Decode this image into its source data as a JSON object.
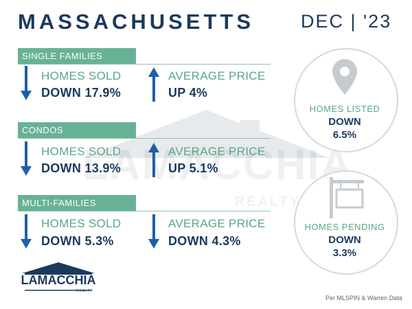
{
  "header": {
    "title": "MASSACHUSETTS",
    "date": "DEC | '23"
  },
  "watermark": {
    "text": "LAMACCHIA",
    "sub": "REALTY"
  },
  "sections": [
    {
      "band": "SINGLE FAMILIES",
      "homes_sold": {
        "label": "HOMES SOLD",
        "value": "DOWN 17.9%",
        "direction": "down"
      },
      "avg_price": {
        "label": "AVERAGE PRICE",
        "value": "UP 4%",
        "direction": "up"
      }
    },
    {
      "band": "CONDOS",
      "homes_sold": {
        "label": "HOMES SOLD",
        "value": "DOWN 13.9%",
        "direction": "down"
      },
      "avg_price": {
        "label": "AVERAGE PRICE",
        "value": "UP 5.1%",
        "direction": "up"
      }
    },
    {
      "band": "MULTI-FAMILIES",
      "homes_sold": {
        "label": "HOMES SOLD",
        "value": "DOWN 5.3%",
        "direction": "down"
      },
      "avg_price": {
        "label": "AVERAGE PRICE",
        "value": "DOWN 4.3%",
        "direction": "down"
      }
    }
  ],
  "circles": {
    "listed": {
      "label": "HOMES LISTED",
      "line1": "DOWN",
      "line2": "6.5%",
      "icon": "map-pin-icon"
    },
    "pending": {
      "label": "HOMES PENDING",
      "line1": "DOWN",
      "line2": "3.3%",
      "icon": "sign-post-icon"
    }
  },
  "logo": {
    "text": "LAMACCHIA",
    "sub": "REALTY"
  },
  "footer": {
    "credit": "Per MLSPIN & Warren Data"
  },
  "colors": {
    "navy": "#1b3a5c",
    "green": "#67b295",
    "arrow_blue": "#1f5fa8",
    "circle_border": "#d5d9dd"
  }
}
